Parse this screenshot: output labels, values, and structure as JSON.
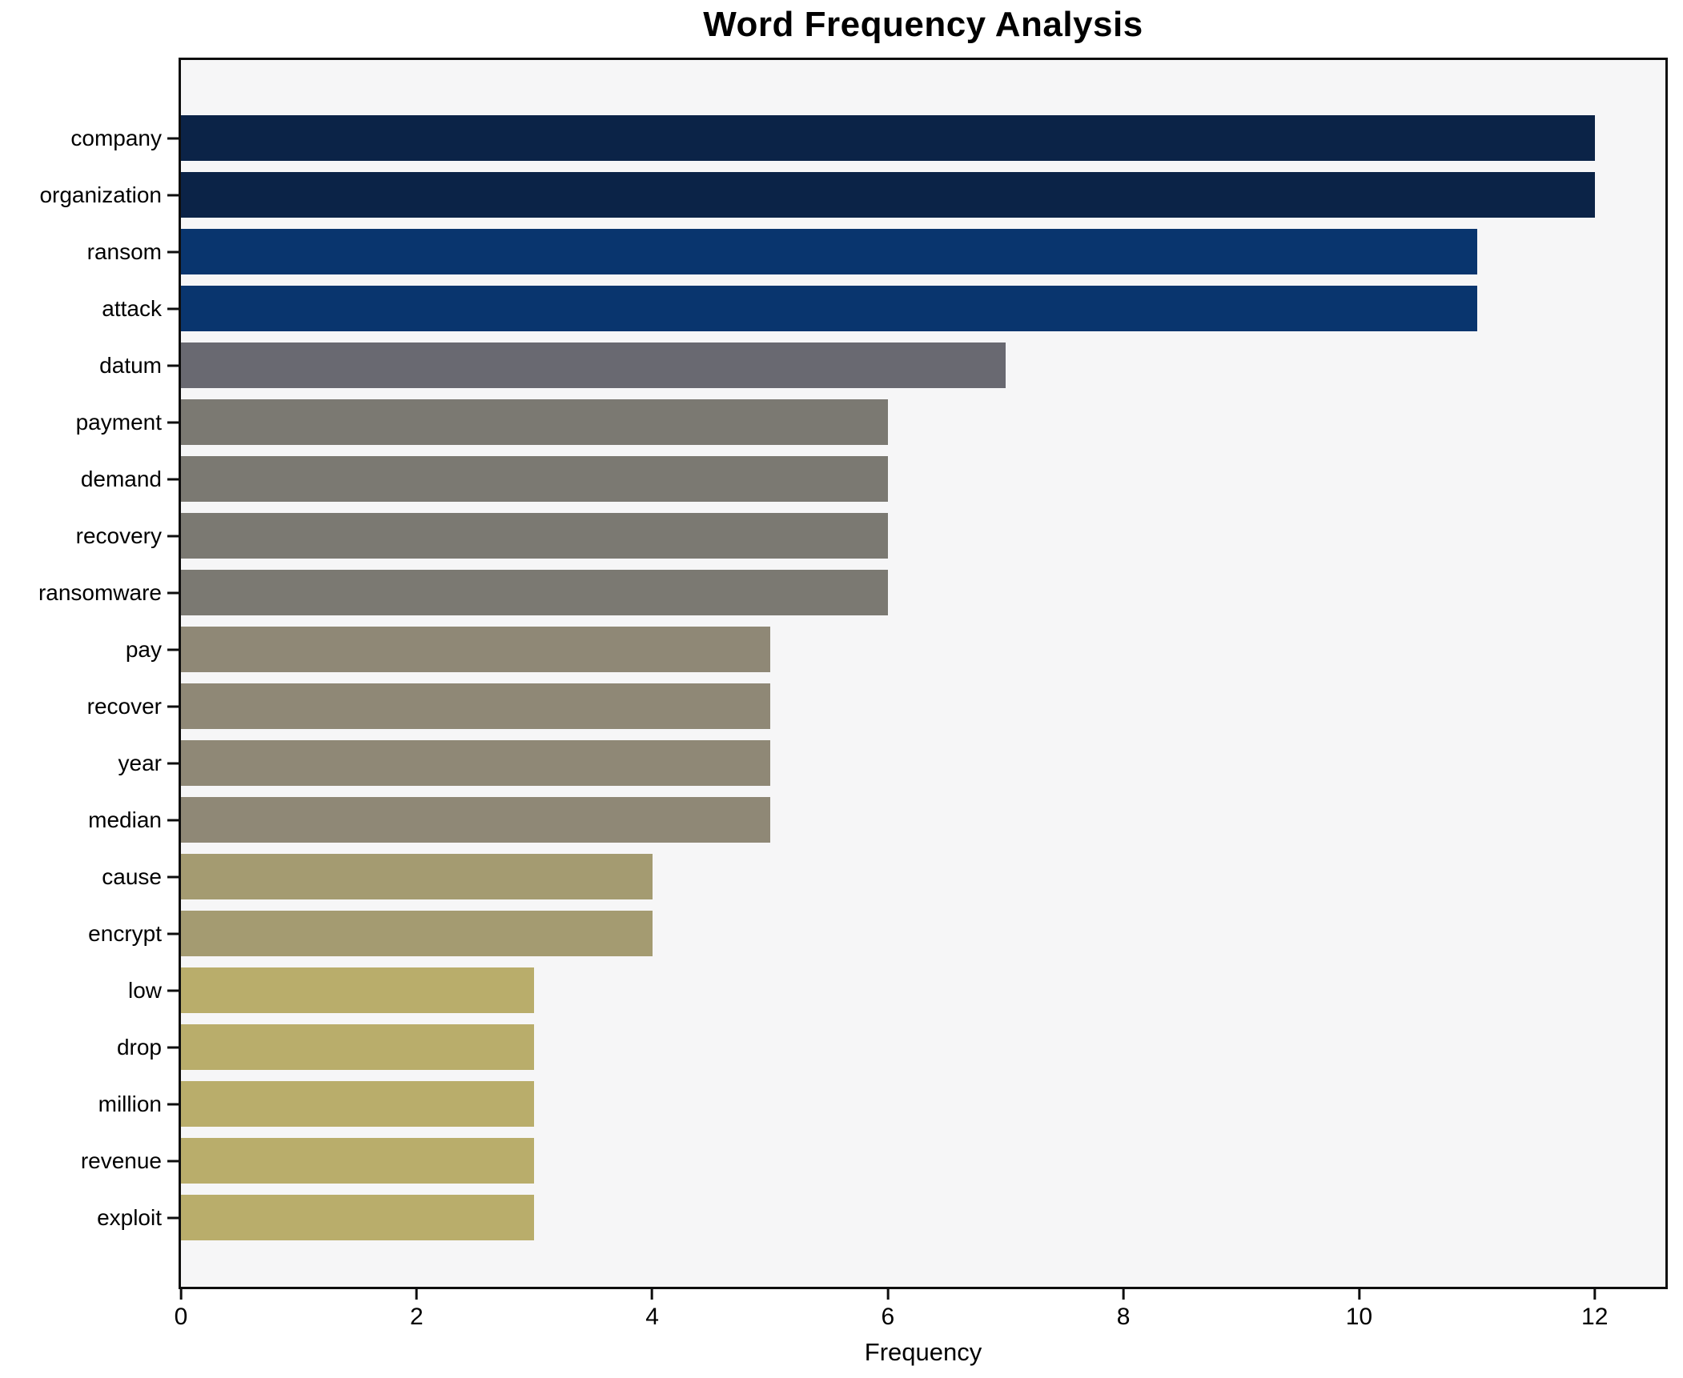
{
  "title": "Word Frequency Analysis",
  "chart_data": {
    "type": "bar",
    "orientation": "horizontal",
    "title": "Word Frequency Analysis",
    "xlabel": "Frequency",
    "ylabel": "",
    "categories": [
      "company",
      "organization",
      "ransom",
      "attack",
      "datum",
      "payment",
      "demand",
      "recovery",
      "ransomware",
      "pay",
      "recover",
      "year",
      "median",
      "cause",
      "encrypt",
      "low",
      "drop",
      "million",
      "revenue",
      "exploit"
    ],
    "values": [
      12,
      12,
      11,
      11,
      7,
      6,
      6,
      6,
      6,
      5,
      5,
      5,
      5,
      4,
      4,
      3,
      3,
      3,
      3,
      3
    ],
    "bar_colors": [
      "#0b2347",
      "#0b2347",
      "#09356e",
      "#09356e",
      "#696971",
      "#7b7972",
      "#7b7972",
      "#7b7972",
      "#7b7972",
      "#8f8876",
      "#8f8876",
      "#8f8876",
      "#8f8876",
      "#a49b71",
      "#a49b71",
      "#b9ad6b",
      "#b9ad6b",
      "#b9ad6b",
      "#b9ad6b",
      "#b9ad6b"
    ],
    "xlim": [
      0,
      12.6
    ],
    "xticks": [
      0,
      2,
      4,
      6,
      8,
      10,
      12
    ],
    "grid": false,
    "legend": null,
    "plot_background": "#f6f6f7",
    "figure_background": "#ffffff",
    "spine_color": "#0e0e0e",
    "tick_color": "#0e0e0e"
  }
}
